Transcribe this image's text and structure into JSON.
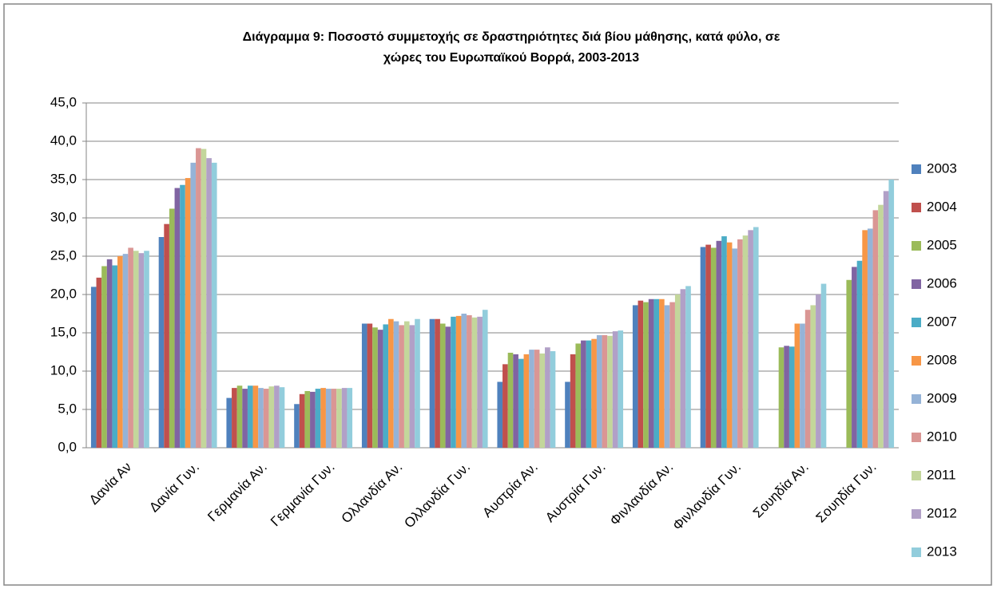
{
  "chart_data": {
    "type": "bar",
    "title_lines": [
      "Διάγραμμα 9: Ποσοστό συμμετοχής  σε δραστηριότητες  διά βίου μάθησης, κατά φύλο, σε",
      "χώρες του  Ευρωπαϊκού Βορρά, 2003-2013"
    ],
    "categories": [
      "Δανία Αν",
      "Δανία Γυν.",
      "Γερμανία Αν.",
      "Γερμανία Γυν.",
      "Ολλανδία Αν.",
      "Ολλανδία Γυν.",
      "Αυστρία Αν.",
      "Αυστρία Γυν.",
      "Φινλανδία Αν.",
      "Φινλανδία Γυν.",
      "Σουηδία Αν.",
      "Σουηδία Γυν."
    ],
    "series": [
      {
        "name": "2003",
        "color": "#4f81bd",
        "values": [
          21.0,
          27.5,
          6.5,
          5.7,
          16.2,
          16.8,
          8.6,
          8.6,
          18.6,
          26.2,
          null,
          null
        ]
      },
      {
        "name": "2004",
        "color": "#c0504d",
        "values": [
          22.2,
          29.2,
          7.8,
          7.0,
          16.2,
          16.8,
          10.9,
          12.2,
          19.2,
          26.5,
          null,
          null
        ]
      },
      {
        "name": "2005",
        "color": "#9bbb59",
        "values": [
          23.7,
          31.2,
          8.1,
          7.4,
          15.7,
          16.2,
          12.4,
          13.6,
          19.0,
          26.1,
          13.1,
          21.9
        ]
      },
      {
        "name": "2006",
        "color": "#8064a2",
        "values": [
          24.6,
          33.9,
          7.7,
          7.3,
          15.4,
          15.8,
          12.2,
          14.0,
          19.4,
          27.0,
          13.3,
          23.6
        ]
      },
      {
        "name": "2007",
        "color": "#4bacc6",
        "values": [
          23.8,
          34.3,
          8.1,
          7.7,
          16.1,
          17.1,
          11.6,
          14.0,
          19.4,
          27.6,
          13.2,
          24.4
        ]
      },
      {
        "name": "2008",
        "color": "#f79646",
        "values": [
          25.0,
          35.2,
          8.1,
          7.8,
          16.8,
          17.2,
          12.2,
          14.2,
          19.4,
          26.8,
          16.2,
          28.4
        ]
      },
      {
        "name": "2009",
        "color": "#95b3d7",
        "values": [
          25.3,
          37.2,
          7.8,
          7.7,
          16.5,
          17.5,
          12.8,
          14.7,
          18.6,
          26.0,
          16.2,
          28.6
        ]
      },
      {
        "name": "2010",
        "color": "#da9694",
        "values": [
          26.1,
          39.1,
          7.7,
          7.7,
          16.0,
          17.3,
          12.8,
          14.7,
          19.0,
          27.2,
          18.0,
          31.0
        ]
      },
      {
        "name": "2011",
        "color": "#c3d69b",
        "values": [
          25.7,
          39.0,
          8.0,
          7.7,
          16.5,
          17.0,
          12.3,
          14.6,
          20.0,
          27.7,
          18.6,
          31.7
        ]
      },
      {
        "name": "2012",
        "color": "#b1a0c7",
        "values": [
          25.4,
          37.8,
          8.1,
          7.8,
          16.0,
          17.1,
          13.1,
          15.2,
          20.7,
          28.4,
          20.0,
          33.5
        ]
      },
      {
        "name": "2013",
        "color": "#92cddc",
        "values": [
          25.7,
          37.2,
          7.9,
          7.8,
          16.8,
          18.0,
          12.6,
          15.3,
          21.1,
          28.8,
          21.4,
          35.0
        ]
      }
    ],
    "ylim": [
      0,
      45
    ],
    "yticks": [
      {
        "value": 0,
        "label": "0,0"
      },
      {
        "value": 5,
        "label": "5,0"
      },
      {
        "value": 10,
        "label": "10,0"
      },
      {
        "value": 15,
        "label": "15,0"
      },
      {
        "value": 20,
        "label": "20,0"
      },
      {
        "value": 25,
        "label": "25,0"
      },
      {
        "value": 30,
        "label": "30,0"
      },
      {
        "value": 35,
        "label": "35,0"
      },
      {
        "value": 40,
        "label": "40,0"
      },
      {
        "value": 45,
        "label": "45,0"
      }
    ],
    "grid": true,
    "legend": "right"
  }
}
